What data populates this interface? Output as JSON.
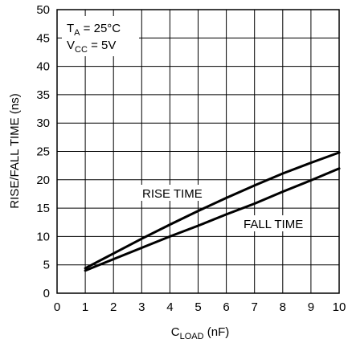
{
  "chart_data": {
    "type": "line",
    "title": "",
    "xlabel": {
      "main": "C",
      "sub": "LOAD",
      "unit": " (nF)"
    },
    "ylabel": "RISE/FALL TIME (ns)",
    "xlim": [
      0,
      10
    ],
    "ylim": [
      0,
      50
    ],
    "xticks": [
      "0",
      "1",
      "2",
      "3",
      "4",
      "5",
      "6",
      "7",
      "8",
      "9",
      "10"
    ],
    "yticks": [
      "0",
      "5",
      "10",
      "15",
      "20",
      "25",
      "30",
      "35",
      "40",
      "45",
      "50"
    ],
    "grid": true,
    "conditions": [
      {
        "main": "T",
        "sub": "A",
        "rest": " = 25°C"
      },
      {
        "main": "V",
        "sub": "CC",
        "rest": " = 5V"
      }
    ],
    "series": [
      {
        "name": "RISE TIME",
        "x": [
          1,
          2,
          3,
          4,
          5,
          6,
          7,
          8,
          9,
          10
        ],
        "values": [
          4.4,
          7.0,
          9.6,
          12.1,
          14.5,
          16.8,
          19.0,
          21.1,
          23.0,
          24.8
        ]
      },
      {
        "name": "FALL TIME",
        "x": [
          1,
          2,
          3,
          4,
          5,
          6,
          7,
          8,
          9,
          10
        ],
        "values": [
          4.0,
          6.0,
          8.0,
          10.0,
          11.9,
          13.9,
          15.8,
          17.9,
          19.9,
          22.0
        ]
      }
    ]
  }
}
